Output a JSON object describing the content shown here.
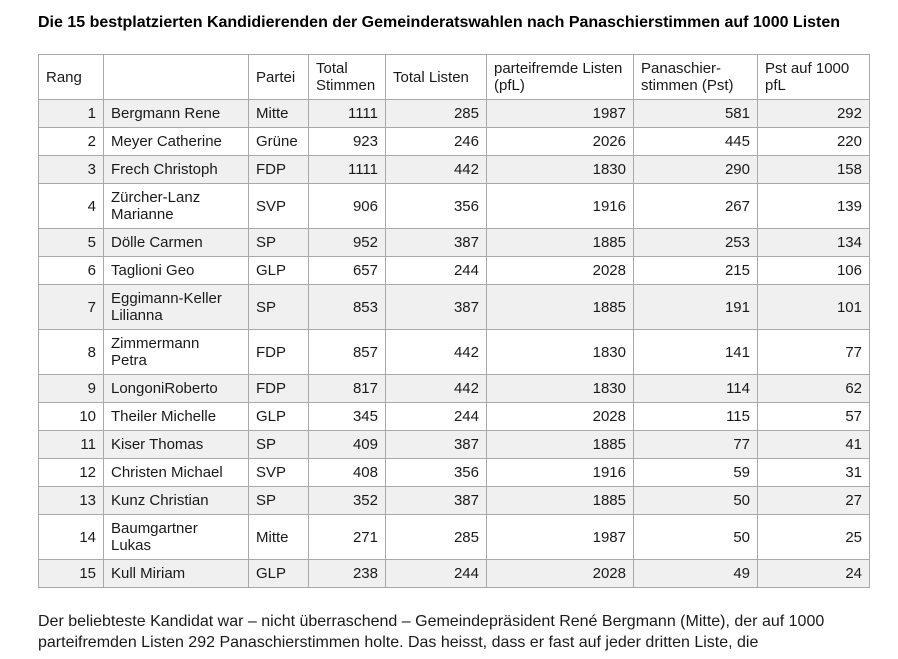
{
  "title": "Die 15 bestplatzierten Kandidierenden der Gemeinderatswahlen nach Panaschierstimmen auf 1000 Listen",
  "table": {
    "columns": [
      {
        "label": "Rang"
      },
      {
        "label": ""
      },
      {
        "label": "Partei"
      },
      {
        "label": "Total Stimmen"
      },
      {
        "label": "Total Listen"
      },
      {
        "label": "parteifremde Listen (pfL)"
      },
      {
        "label": "Panaschier-stimmen (Pst)"
      },
      {
        "label": "Pst auf 1000 pfL"
      }
    ],
    "rows": [
      {
        "rank": "1",
        "name": "Bergmann Rene",
        "partei": "Mitte",
        "total_stimmen": "1111",
        "total_listen": "285",
        "pfl": "1987",
        "pst": "581",
        "pst_pro_1000": "292"
      },
      {
        "rank": "2",
        "name": "Meyer Catherine",
        "partei": "Grüne",
        "total_stimmen": "923",
        "total_listen": "246",
        "pfl": "2026",
        "pst": "445",
        "pst_pro_1000": "220"
      },
      {
        "rank": "3",
        "name": "Frech Christoph",
        "partei": "FDP",
        "total_stimmen": "1111",
        "total_listen": "442",
        "pfl": "1830",
        "pst": "290",
        "pst_pro_1000": "158"
      },
      {
        "rank": "4",
        "name": "Zürcher-Lanz Marianne",
        "partei": "SVP",
        "total_stimmen": "906",
        "total_listen": "356",
        "pfl": "1916",
        "pst": "267",
        "pst_pro_1000": "139"
      },
      {
        "rank": "5",
        "name": "Dölle Carmen",
        "partei": "SP",
        "total_stimmen": "952",
        "total_listen": "387",
        "pfl": "1885",
        "pst": "253",
        "pst_pro_1000": "134"
      },
      {
        "rank": "6",
        "name": "Taglioni Geo",
        "partei": "GLP",
        "total_stimmen": "657",
        "total_listen": "244",
        "pfl": "2028",
        "pst": "215",
        "pst_pro_1000": "106"
      },
      {
        "rank": "7",
        "name": "Eggimann-Keller Lilianna",
        "partei": "SP",
        "total_stimmen": "853",
        "total_listen": "387",
        "pfl": "1885",
        "pst": "191",
        "pst_pro_1000": "101"
      },
      {
        "rank": "8",
        "name": "Zimmermann Petra",
        "partei": "FDP",
        "total_stimmen": "857",
        "total_listen": "442",
        "pfl": "1830",
        "pst": "141",
        "pst_pro_1000": "77"
      },
      {
        "rank": "9",
        "name": "LongoniRoberto",
        "partei": "FDP",
        "total_stimmen": "817",
        "total_listen": "442",
        "pfl": "1830",
        "pst": "114",
        "pst_pro_1000": "62"
      },
      {
        "rank": "10",
        "name": "Theiler Michelle",
        "partei": "GLP",
        "total_stimmen": "345",
        "total_listen": "244",
        "pfl": "2028",
        "pst": "115",
        "pst_pro_1000": "57"
      },
      {
        "rank": "11",
        "name": "Kiser Thomas",
        "partei": "SP",
        "total_stimmen": "409",
        "total_listen": "387",
        "pfl": "1885",
        "pst": "77",
        "pst_pro_1000": "41"
      },
      {
        "rank": "12",
        "name": "Christen Michael",
        "partei": "SVP",
        "total_stimmen": "408",
        "total_listen": "356",
        "pfl": "1916",
        "pst": "59",
        "pst_pro_1000": "31"
      },
      {
        "rank": "13",
        "name": "Kunz Christian",
        "partei": "SP",
        "total_stimmen": "352",
        "total_listen": "387",
        "pfl": "1885",
        "pst": "50",
        "pst_pro_1000": "27"
      },
      {
        "rank": "14",
        "name": "Baumgartner Lukas",
        "partei": "Mitte",
        "total_stimmen": "271",
        "total_listen": "285",
        "pfl": "1987",
        "pst": "50",
        "pst_pro_1000": "25"
      },
      {
        "rank": "15",
        "name": "Kull Miriam",
        "partei": "GLP",
        "total_stimmen": "238",
        "total_listen": "244",
        "pfl": "2028",
        "pst": "49",
        "pst_pro_1000": "24"
      }
    ]
  },
  "footer": {
    "text": "Der beliebteste Kandidat war – nicht überraschend – Gemeindepräsident René Bergmann (Mitte), der auf 1000 parteifremden Listen 292 Panaschierstimmen holte. Das heisst, dass er fast auf jeder dritten Liste, die"
  },
  "colors": {
    "background": "#ffffff",
    "row_stripe": "#f0f0f0",
    "table_border": "#a9a9a9",
    "text": "#1a1a1a"
  }
}
